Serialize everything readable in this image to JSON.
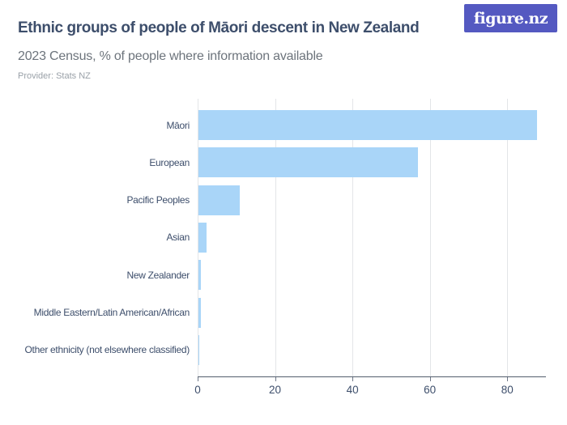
{
  "header": {
    "title": "Ethnic groups of people of Māori descent in New Zealand",
    "subtitle": "2023 Census, % of people where information available",
    "provider": "Provider: Stats NZ",
    "logo_text": "figure.nz",
    "logo_bg": "#5459c1"
  },
  "chart_data": {
    "type": "bar",
    "orientation": "horizontal",
    "title": "Ethnic groups of people of Māori descent in New Zealand",
    "subtitle": "2023 Census, % of people where information available",
    "xlabel": "",
    "ylabel": "",
    "categories": [
      "Māori",
      "European",
      "Pacific Peoples",
      "Asian",
      "New Zealander",
      "Middle Eastern/Latin American/African",
      "Other ethnicity (not elsewhere classified)"
    ],
    "values": [
      87.5,
      56.7,
      10.7,
      2.1,
      0.6,
      0.6,
      0.1
    ],
    "unit": "%",
    "xlim": [
      0,
      90
    ],
    "xticks": [
      0,
      20,
      40,
      60,
      80
    ],
    "grid": true,
    "legend": false,
    "bar_color": "#a9d5f8",
    "grid_color": "#e3e5e8",
    "axis_color": "#535e6d",
    "text_color": "#3d4e6b"
  }
}
